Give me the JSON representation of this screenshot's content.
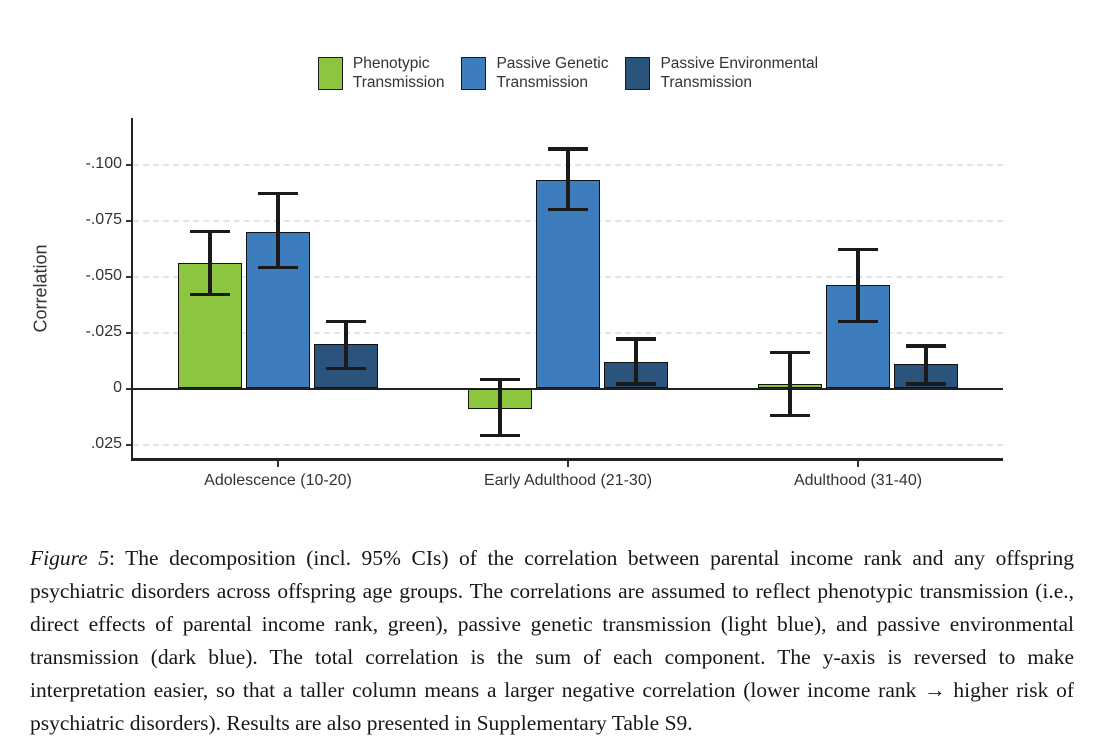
{
  "caption": {
    "figure_label": "Figure 5",
    "text": ": The decomposition (incl. 95% CIs) of the correlation between parental income rank and any offspring psychiatric disorders across offspring age groups. The correlations are assumed to reflect phenotypic transmission (i.e., direct effects of parental income rank, green), passive genetic transmission (light blue), and passive environmental transmission (dark blue). The total correlation is the sum of each component. The y-axis is reversed to make interpretation easier, so that a taller column means a larger negative correlation (lower income rank → higher risk of psychiatric disorders). Results are also presented in Supplementary Table S9."
  },
  "chart_data": {
    "type": "bar",
    "title": "",
    "xlabel": "",
    "ylabel": "Correlation",
    "legend_position": "top",
    "grid": "horizontal-dashed",
    "y_axis": {
      "reversed": true,
      "ticks": [
        -0.1,
        -0.075,
        -0.05,
        -0.025,
        0,
        0.025
      ],
      "tick_labels": [
        "-.100",
        "-.075",
        "-.050",
        "-.025",
        "0",
        ".025"
      ],
      "range": [
        -0.1205,
        0.031
      ]
    },
    "categories": [
      "Adolescence (10-20)",
      "Early Adulthood (21-30)",
      "Adulthood (31-40)"
    ],
    "series": [
      {
        "name": "Phenotypic Transmission",
        "label_lines": [
          "Phenotypic",
          "Transmission"
        ],
        "color": "#8cc63e",
        "values": [
          -0.056,
          0.009,
          -0.002
        ],
        "ci": [
          [
            -0.07,
            -0.042
          ],
          [
            -0.004,
            0.021
          ],
          [
            -0.016,
            0.012
          ]
        ]
      },
      {
        "name": "Passive Genetic Transmission",
        "label_lines": [
          "Passive Genetic",
          "Transmission"
        ],
        "color": "#3d7dbe",
        "values": [
          -0.07,
          -0.093,
          -0.046
        ],
        "ci": [
          [
            -0.087,
            -0.054
          ],
          [
            -0.107,
            -0.08
          ],
          [
            -0.062,
            -0.03
          ]
        ]
      },
      {
        "name": "Passive Environmental Transmission",
        "label_lines": [
          "Passive Environmental",
          "Transmission"
        ],
        "color": "#2a547c",
        "values": [
          -0.02,
          -0.012,
          -0.011
        ],
        "ci": [
          [
            -0.03,
            -0.009
          ],
          [
            -0.022,
            -0.002
          ],
          [
            -0.019,
            -0.002
          ]
        ]
      }
    ]
  }
}
